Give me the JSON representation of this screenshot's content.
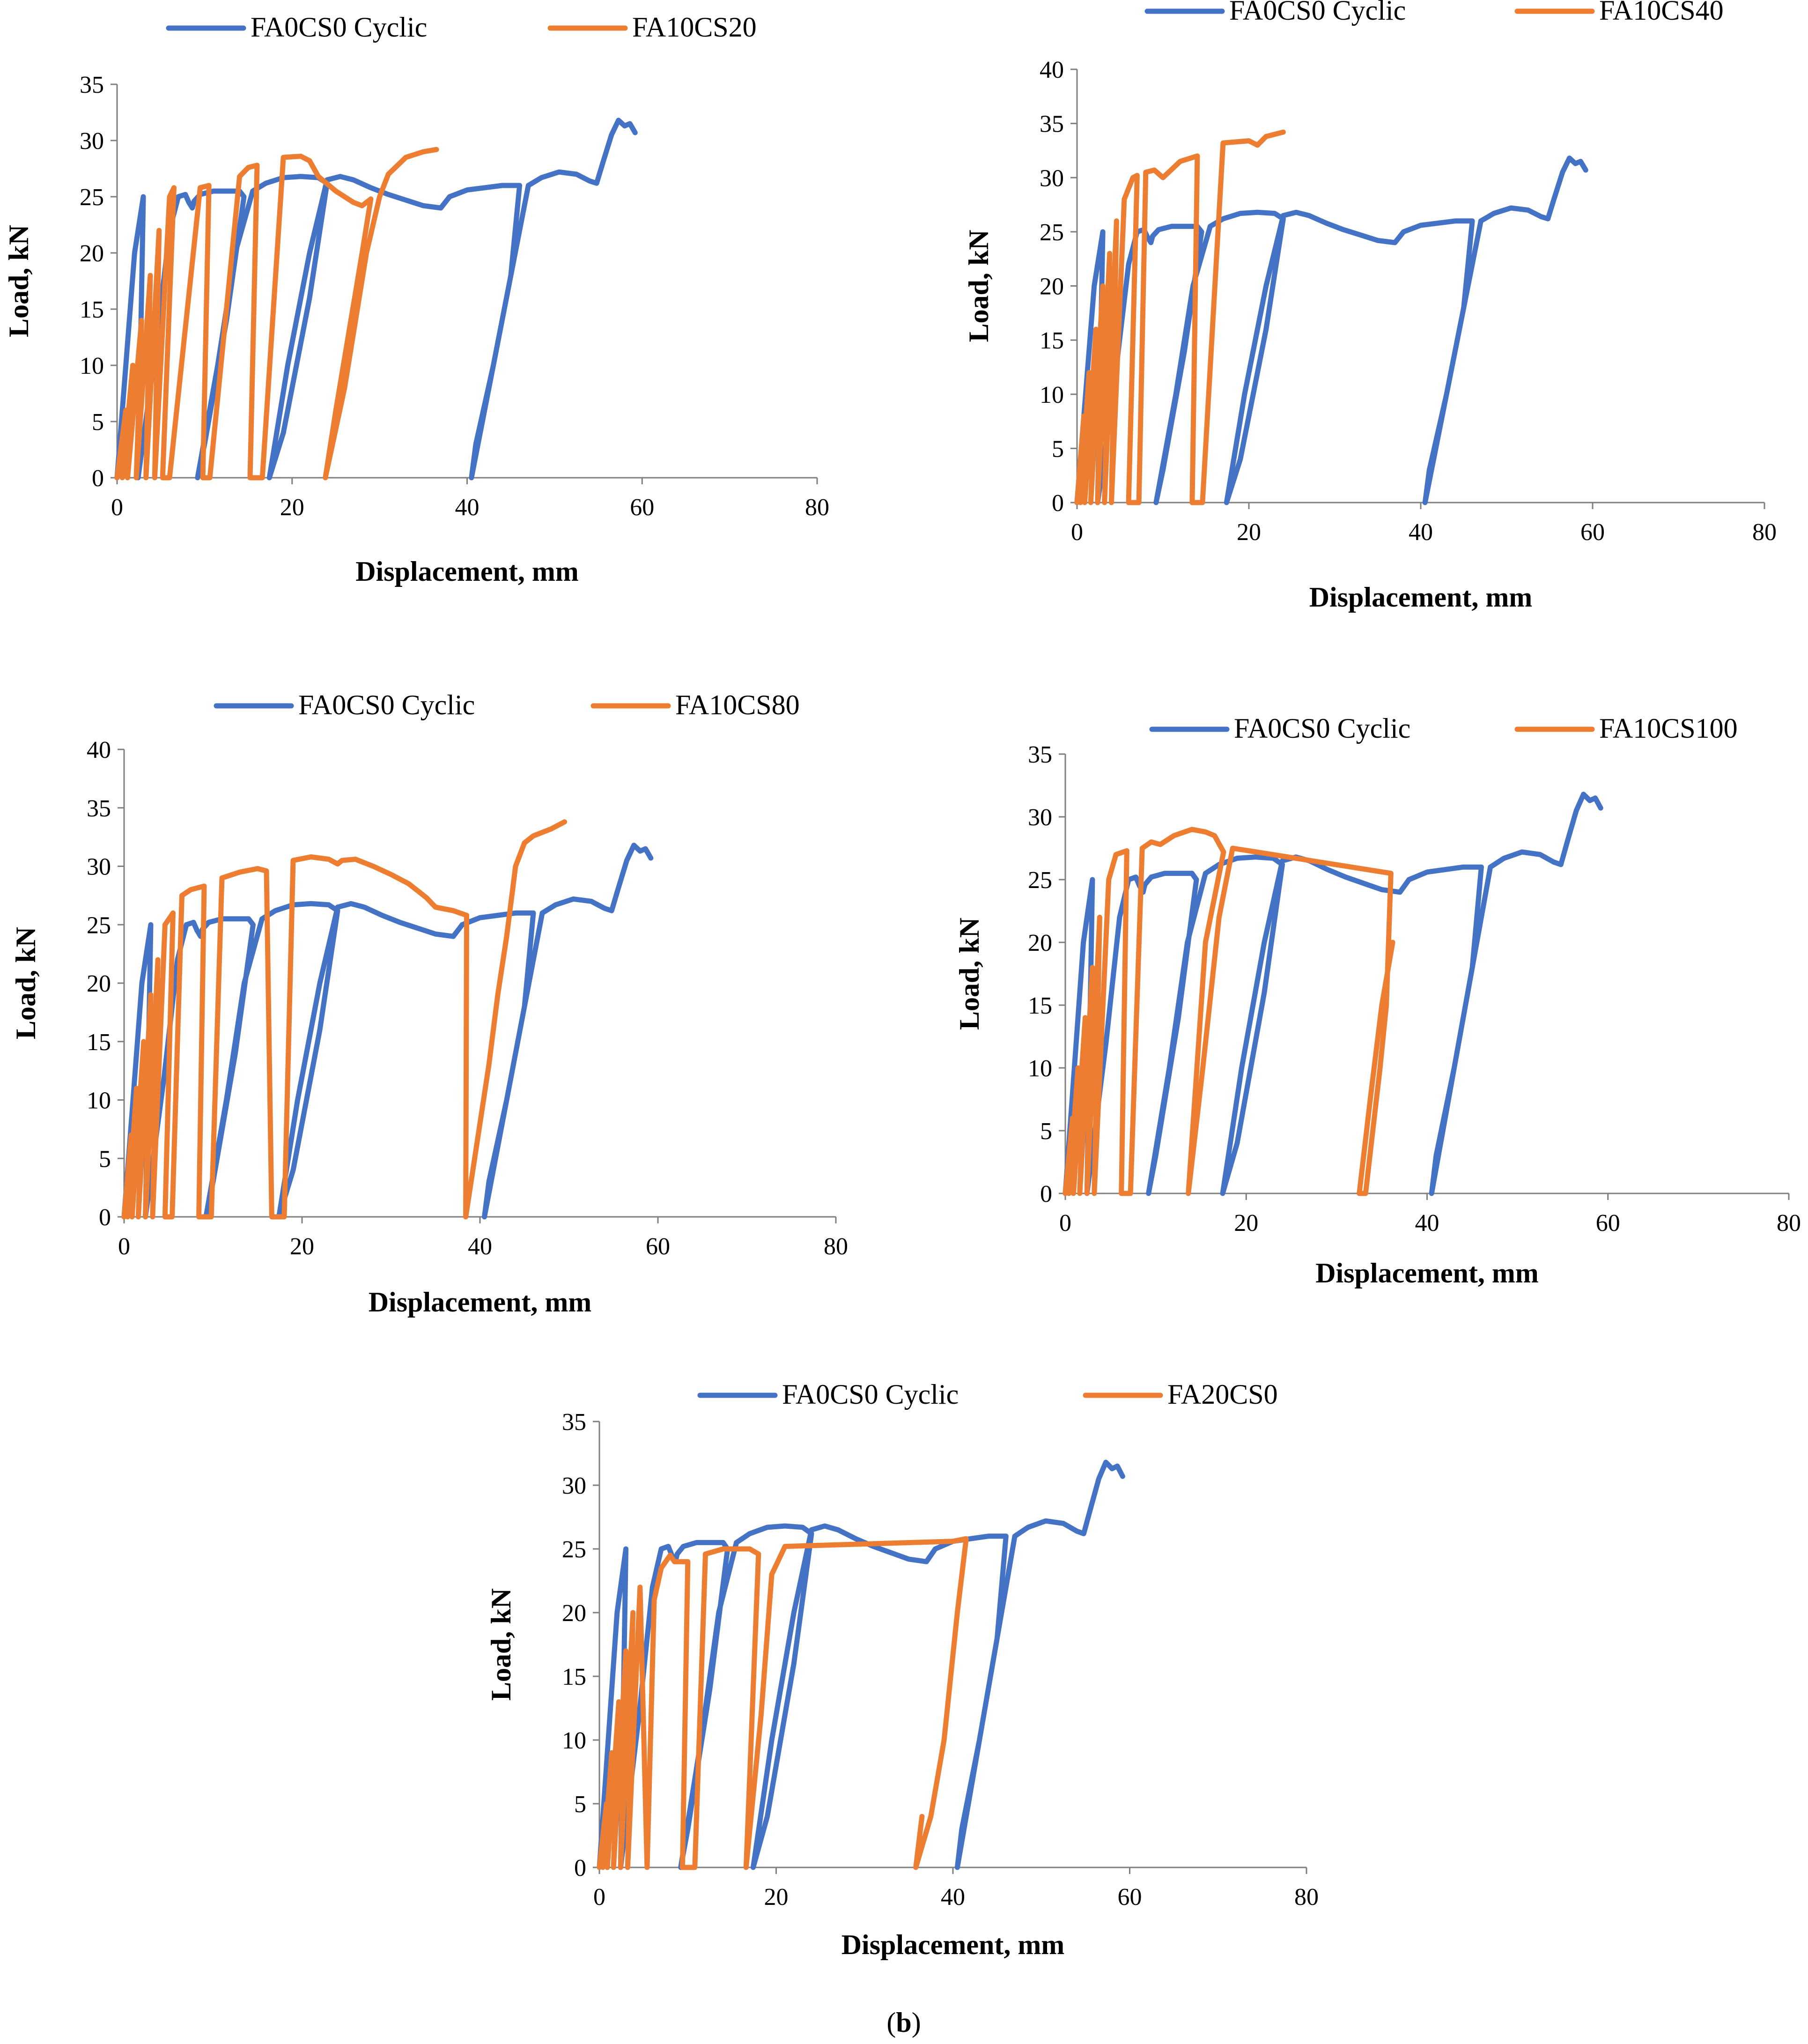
{
  "figure": {
    "caption_open": "(",
    "caption_letter": "b",
    "caption_close": ")"
  },
  "colors": {
    "blue": "#4472C4",
    "orange": "#ED7D31"
  },
  "chart_data": [
    {
      "type": "line",
      "id": "c1",
      "title": "",
      "xlabel": "Displacement, mm",
      "ylabel": "Load, kN",
      "xlim": [
        0,
        80
      ],
      "ylim": [
        0,
        35
      ],
      "xticks": [
        0,
        20,
        40,
        60,
        80
      ],
      "yticks": [
        0,
        5,
        10,
        15,
        20,
        25,
        30,
        35
      ],
      "grid": false,
      "legend": "top",
      "series": [
        {
          "name": "FA0CS0 Cyclic",
          "color": "#4472C4",
          "points": "REF"
        },
        {
          "name": "FA10CS20",
          "color": "#ED7D31",
          "points": [
            [
              0,
              0
            ],
            [
              1,
              6
            ],
            [
              0.6,
              0
            ],
            [
              1.8,
              10
            ],
            [
              1.2,
              0
            ],
            [
              2.8,
              14
            ],
            [
              2.2,
              0
            ],
            [
              3.8,
              18
            ],
            [
              3.3,
              0
            ],
            [
              4.8,
              22
            ],
            [
              4.3,
              0
            ],
            [
              6,
              25
            ],
            [
              6.5,
              25.8
            ],
            [
              5.2,
              0
            ],
            [
              6,
              0
            ],
            [
              9.5,
              25.8
            ],
            [
              10.5,
              26
            ],
            [
              9.8,
              0
            ],
            [
              10.6,
              0
            ],
            [
              14,
              26.8
            ],
            [
              15,
              27.6
            ],
            [
              16,
              27.8
            ],
            [
              15.2,
              0
            ],
            [
              16.6,
              0
            ],
            [
              19,
              28.5
            ],
            [
              21,
              28.6
            ],
            [
              22,
              28.2
            ],
            [
              23,
              26.8
            ],
            [
              25,
              25.5
            ],
            [
              27,
              24.5
            ],
            [
              28,
              24.2
            ],
            [
              29,
              24.8
            ],
            [
              28,
              20
            ],
            [
              25,
              6
            ],
            [
              23.8,
              0
            ],
            [
              26,
              8
            ],
            [
              28.5,
              20
            ],
            [
              30,
              25
            ],
            [
              31,
              27
            ],
            [
              33,
              28.5
            ],
            [
              35,
              29
            ],
            [
              36.5,
              29.2
            ]
          ]
        }
      ]
    },
    {
      "type": "line",
      "id": "c2",
      "title": "",
      "xlabel": "Displacement, mm",
      "ylabel": "Load, kN",
      "xlim": [
        0,
        80
      ],
      "ylim": [
        0,
        40
      ],
      "xticks": [
        0,
        20,
        40,
        60,
        80
      ],
      "yticks": [
        0,
        5,
        10,
        15,
        20,
        25,
        30,
        35,
        40
      ],
      "grid": false,
      "legend": "top",
      "series": [
        {
          "name": "FA0CS0 Cyclic",
          "color": "#4472C4",
          "points": "REF"
        },
        {
          "name": "FA10CS40",
          "color": "#ED7D31",
          "points": [
            [
              0,
              0
            ],
            [
              0.8,
              8
            ],
            [
              0.4,
              0
            ],
            [
              1.4,
              12
            ],
            [
              0.9,
              0
            ],
            [
              2.2,
              16
            ],
            [
              1.6,
              0
            ],
            [
              3,
              20
            ],
            [
              2.4,
              0
            ],
            [
              3.8,
              23
            ],
            [
              3.2,
              0
            ],
            [
              4.6,
              26
            ],
            [
              4,
              0
            ],
            [
              5.5,
              28
            ],
            [
              6.5,
              30
            ],
            [
              7,
              30.2
            ],
            [
              6,
              0
            ],
            [
              7.2,
              0
            ],
            [
              8,
              30.5
            ],
            [
              9,
              30.7
            ],
            [
              10,
              30
            ],
            [
              12,
              31.5
            ],
            [
              14,
              32
            ],
            [
              13.4,
              0
            ],
            [
              14.6,
              0
            ],
            [
              17,
              33.2
            ],
            [
              20,
              33.4
            ],
            [
              21,
              33
            ],
            [
              22,
              33.8
            ],
            [
              24,
              34.2
            ]
          ]
        }
      ]
    },
    {
      "type": "line",
      "id": "c3",
      "title": "",
      "xlabel": "Displacement, mm",
      "ylabel": "Load, kN",
      "xlim": [
        0,
        80
      ],
      "ylim": [
        0,
        40
      ],
      "xticks": [
        0,
        20,
        40,
        60,
        80
      ],
      "yticks": [
        0,
        5,
        10,
        15,
        20,
        25,
        30,
        35,
        40
      ],
      "grid": false,
      "legend": "top",
      "series": [
        {
          "name": "FA0CS0 Cyclic",
          "color": "#4472C4",
          "points": "REF"
        },
        {
          "name": "FA10CS80",
          "color": "#ED7D31",
          "points": [
            [
              0,
              0
            ],
            [
              0.8,
              7
            ],
            [
              0.4,
              0
            ],
            [
              1.4,
              11
            ],
            [
              0.9,
              0
            ],
            [
              2.2,
              15
            ],
            [
              1.6,
              0
            ],
            [
              3,
              19
            ],
            [
              2.4,
              0
            ],
            [
              3.8,
              22
            ],
            [
              3.2,
              0
            ],
            [
              4.6,
              25
            ],
            [
              5.5,
              26
            ],
            [
              4.6,
              0
            ],
            [
              5.4,
              0
            ],
            [
              6.5,
              27.5
            ],
            [
              7.5,
              28
            ],
            [
              9,
              28.3
            ],
            [
              8.4,
              0
            ],
            [
              9.8,
              0
            ],
            [
              11,
              29
            ],
            [
              13,
              29.5
            ],
            [
              15,
              29.8
            ],
            [
              16,
              29.6
            ],
            [
              16.6,
              0
            ],
            [
              18,
              0
            ],
            [
              19,
              30.5
            ],
            [
              21,
              30.8
            ],
            [
              23,
              30.6
            ],
            [
              24,
              30.2
            ],
            [
              24.5,
              30.5
            ],
            [
              26,
              30.6
            ],
            [
              28,
              30
            ],
            [
              30,
              29.3
            ],
            [
              32,
              28.5
            ],
            [
              34,
              27.3
            ],
            [
              35,
              26.5
            ],
            [
              37,
              26.2
            ],
            [
              38.5,
              25.8
            ],
            [
              38.4,
              0
            ],
            [
              39.8,
              7
            ],
            [
              41,
              13
            ],
            [
              42,
              19
            ],
            [
              43,
              24
            ],
            [
              44,
              30
            ],
            [
              45,
              32
            ],
            [
              46,
              32.6
            ],
            [
              48,
              33.2
            ],
            [
              49.5,
              33.8
            ]
          ]
        }
      ]
    },
    {
      "type": "line",
      "id": "c4",
      "title": "",
      "xlabel": "Displacement, mm",
      "ylabel": "Load, kN",
      "xlim": [
        0,
        80
      ],
      "ylim": [
        0,
        35
      ],
      "xticks": [
        0,
        20,
        40,
        60,
        80
      ],
      "yticks": [
        0,
        5,
        10,
        15,
        20,
        25,
        30,
        35
      ],
      "grid": false,
      "legend": "top",
      "series": [
        {
          "name": "FA0CS0 Cyclic",
          "color": "#4472C4",
          "points": "REF"
        },
        {
          "name": "FA10CS100",
          "color": "#ED7D31",
          "points": [
            [
              0,
              0
            ],
            [
              0.8,
              6
            ],
            [
              0.4,
              0
            ],
            [
              1.4,
              10
            ],
            [
              0.9,
              0
            ],
            [
              2.2,
              14
            ],
            [
              1.6,
              0
            ],
            [
              3,
              18
            ],
            [
              2.4,
              0
            ],
            [
              3.8,
              22
            ],
            [
              3.2,
              0
            ],
            [
              4.8,
              25
            ],
            [
              5.6,
              27
            ],
            [
              6.8,
              27.3
            ],
            [
              6.2,
              0
            ],
            [
              7.2,
              0
            ],
            [
              8.5,
              27.5
            ],
            [
              9.5,
              28
            ],
            [
              10.5,
              27.8
            ],
            [
              12,
              28.5
            ],
            [
              14,
              29
            ],
            [
              15.5,
              28.8
            ],
            [
              16.5,
              28.5
            ],
            [
              17.5,
              27.2
            ],
            [
              15.5,
              20
            ],
            [
              13.6,
              0
            ],
            [
              15.2,
              10
            ],
            [
              17,
              22
            ],
            [
              18.5,
              27.5
            ],
            [
              36,
              25.5
            ],
            [
              35.5,
              15
            ],
            [
              34.8,
              10
            ],
            [
              34,
              5
            ],
            [
              33.2,
              0
            ],
            [
              32.5,
              0
            ],
            [
              33.8,
              8
            ],
            [
              35,
              15
            ],
            [
              36.2,
              20
            ]
          ]
        }
      ]
    },
    {
      "type": "line",
      "id": "c5",
      "title": "",
      "xlabel": "Displacement, mm",
      "ylabel": "Load, kN",
      "xlim": [
        0,
        80
      ],
      "ylim": [
        0,
        35
      ],
      "xticks": [
        0,
        20,
        40,
        60,
        80
      ],
      "yticks": [
        0,
        5,
        10,
        15,
        20,
        25,
        30,
        35
      ],
      "grid": false,
      "legend": "top",
      "series": [
        {
          "name": "FA0CS0 Cyclic",
          "color": "#4472C4",
          "points": "REF"
        },
        {
          "name": "FA20CS0",
          "color": "#ED7D31",
          "points": [
            [
              0,
              0
            ],
            [
              0.8,
              5
            ],
            [
              0.4,
              0
            ],
            [
              1.4,
              9
            ],
            [
              0.9,
              0
            ],
            [
              2.2,
              13
            ],
            [
              1.6,
              0
            ],
            [
              3,
              17
            ],
            [
              2.4,
              0
            ],
            [
              3.8,
              20
            ],
            [
              3.2,
              0
            ],
            [
              4.6,
              22
            ],
            [
              5.4,
              0
            ],
            [
              6.2,
              21
            ],
            [
              7,
              23.5
            ],
            [
              8,
              24.5
            ],
            [
              8.5,
              24
            ],
            [
              10,
              24
            ],
            [
              9.4,
              0
            ],
            [
              10.8,
              0
            ],
            [
              12,
              24.6
            ],
            [
              14,
              25
            ],
            [
              17,
              25
            ],
            [
              18,
              24.6
            ],
            [
              16.6,
              0
            ],
            [
              18.3,
              12
            ],
            [
              19.5,
              23
            ],
            [
              21,
              25.2
            ],
            [
              40,
              25.6
            ],
            [
              41.5,
              25.8
            ],
            [
              40.5,
              20
            ],
            [
              39,
              10
            ],
            [
              37.5,
              4
            ],
            [
              35.8,
              0
            ],
            [
              36.5,
              4
            ]
          ]
        }
      ]
    }
  ],
  "reference_series": {
    "name": "FA0CS0 Cyclic",
    "points": [
      [
        0,
        0
      ],
      [
        1,
        10
      ],
      [
        2,
        20
      ],
      [
        3,
        25
      ],
      [
        2.4,
        0
      ],
      [
        4.5,
        12
      ],
      [
        6,
        22
      ],
      [
        7,
        25
      ],
      [
        7.8,
        25.2
      ],
      [
        8.2,
        24.5
      ],
      [
        8.6,
        24
      ],
      [
        8.8,
        24.6
      ],
      [
        9.5,
        25.2
      ],
      [
        11,
        25.5
      ],
      [
        12.5,
        25.5
      ],
      [
        14,
        25.5
      ],
      [
        14.5,
        25
      ],
      [
        12.5,
        14
      ],
      [
        10,
        3
      ],
      [
        9.2,
        0
      ],
      [
        11.5,
        10
      ],
      [
        13.5,
        20
      ],
      [
        15.5,
        25.5
      ],
      [
        17,
        26.2
      ],
      [
        19,
        26.7
      ],
      [
        21,
        26.8
      ],
      [
        23,
        26.7
      ],
      [
        24,
        26.2
      ],
      [
        22,
        16
      ],
      [
        19,
        4
      ],
      [
        17.4,
        0
      ],
      [
        19.5,
        10
      ],
      [
        22,
        20
      ],
      [
        24,
        26.5
      ],
      [
        25.5,
        26.8
      ],
      [
        27,
        26.5
      ],
      [
        29,
        25.8
      ],
      [
        31,
        25.2
      ],
      [
        33,
        24.7
      ],
      [
        35,
        24.2
      ],
      [
        37,
        24
      ],
      [
        38,
        25
      ],
      [
        40,
        25.6
      ],
      [
        42,
        25.8
      ],
      [
        44,
        26
      ],
      [
        46,
        26
      ],
      [
        45,
        18
      ],
      [
        43,
        10
      ],
      [
        41,
        3
      ],
      [
        40.5,
        0
      ],
      [
        42.5,
        8
      ],
      [
        44.5,
        16
      ],
      [
        46,
        22
      ],
      [
        47,
        26
      ],
      [
        48.5,
        26.7
      ],
      [
        50.5,
        27.2
      ],
      [
        52.5,
        27
      ],
      [
        54,
        26.4
      ],
      [
        54.8,
        26.2
      ],
      [
        55.5,
        28
      ],
      [
        56.5,
        30.5
      ],
      [
        57.3,
        31.8
      ],
      [
        58,
        31.3
      ],
      [
        58.6,
        31.5
      ],
      [
        59.2,
        30.7
      ]
    ]
  }
}
